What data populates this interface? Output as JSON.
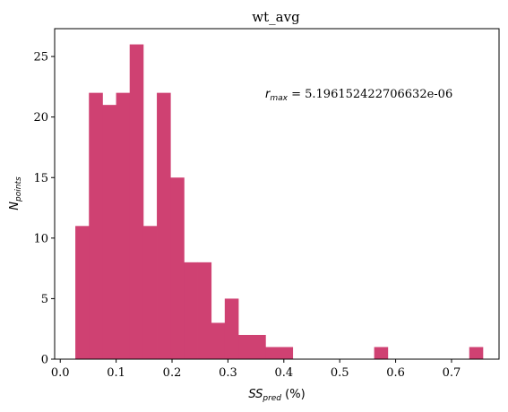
{
  "chart_data": {
    "type": "bar",
    "title": "wt_avg",
    "xlabel": {
      "base": "SS",
      "sub": "pred",
      "suffix": " (%)"
    },
    "ylabel": {
      "base": "N",
      "sub": "points"
    },
    "annotation": {
      "base": "r",
      "sub": "max",
      "text": " = 5.196152422706632e-06"
    },
    "xlim": [
      -0.01,
      0.785
    ],
    "ylim": [
      0,
      27.3
    ],
    "xticks": [
      "0.0",
      "0.1",
      "0.2",
      "0.3",
      "0.4",
      "0.5",
      "0.6",
      "0.7"
    ],
    "xtick_values": [
      0.0,
      0.1,
      0.2,
      0.3,
      0.4,
      0.5,
      0.6,
      0.7
    ],
    "yticks": [
      "0",
      "5",
      "10",
      "15",
      "20",
      "25"
    ],
    "ytick_values": [
      0,
      5,
      10,
      15,
      20,
      25
    ],
    "bin_start": 0.027,
    "bin_width": 0.0243,
    "values": [
      11,
      22,
      21,
      22,
      26,
      11,
      22,
      15,
      8,
      8,
      3,
      5,
      2,
      2,
      1,
      1,
      0,
      0,
      0,
      0,
      0,
      0,
      1,
      0,
      0,
      0,
      0,
      0,
      0,
      1
    ],
    "bar_color": "#cf4172",
    "grid": false
  }
}
